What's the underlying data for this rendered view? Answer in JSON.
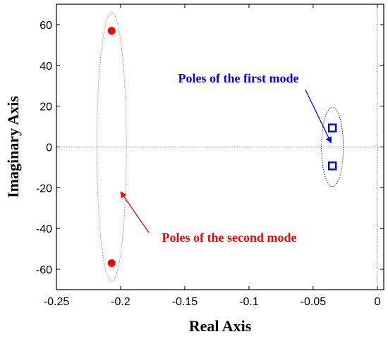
{
  "chart_data": {
    "type": "scatter",
    "title": "",
    "xlabel": "Real Axis",
    "ylabel": "Imaginary Axis",
    "xlim": [
      -0.25,
      0.005
    ],
    "ylim": [
      -70,
      70
    ],
    "x_ticks": [
      -0.25,
      -0.2,
      -0.15,
      -0.1,
      -0.05,
      0
    ],
    "x_tick_labels": [
      "-0.25",
      "-0.2",
      "-0.15",
      "-0.1",
      "-0.05",
      "0"
    ],
    "y_ticks": [
      -60,
      -40,
      -20,
      0,
      20,
      40,
      60
    ],
    "y_tick_labels": [
      "-60",
      "-40",
      "-20",
      "0",
      "20",
      "40",
      "60"
    ],
    "grid": false,
    "reference_lines": [
      {
        "orientation": "horizontal",
        "value": 0
      },
      {
        "orientation": "vertical",
        "value": 0
      }
    ],
    "series": [
      {
        "marker": "square-open",
        "color": "#0000ff",
        "points": [
          {
            "x": -0.035,
            "y": 9.3
          },
          {
            "x": -0.035,
            "y": -9.3
          }
        ]
      },
      {
        "marker": "circle-filled",
        "color": "#ff0000",
        "points": [
          {
            "x": -0.207,
            "y": 57
          },
          {
            "x": -0.207,
            "y": -57
          }
        ]
      }
    ],
    "ellipses": [
      {
        "cx": -0.035,
        "cy": 0,
        "rx": 0.0085,
        "ry": 19.5,
        "color": "#1a2a6c"
      },
      {
        "cx": -0.207,
        "cy": 0,
        "rx": 0.0115,
        "ry": 66,
        "color": "#ff6666"
      }
    ],
    "annotations": [
      {
        "text": "Poles of the first mode",
        "color": "#0000ff",
        "arrow_from": {
          "x": -0.056,
          "y": 28
        },
        "arrow_to": {
          "x": -0.036,
          "y": 2
        }
      },
      {
        "text": "Poles of the second mode",
        "color": "#ff0000",
        "arrow_from": {
          "x": -0.178,
          "y": -42
        },
        "arrow_to": {
          "x": -0.2,
          "y": -22
        }
      }
    ]
  }
}
